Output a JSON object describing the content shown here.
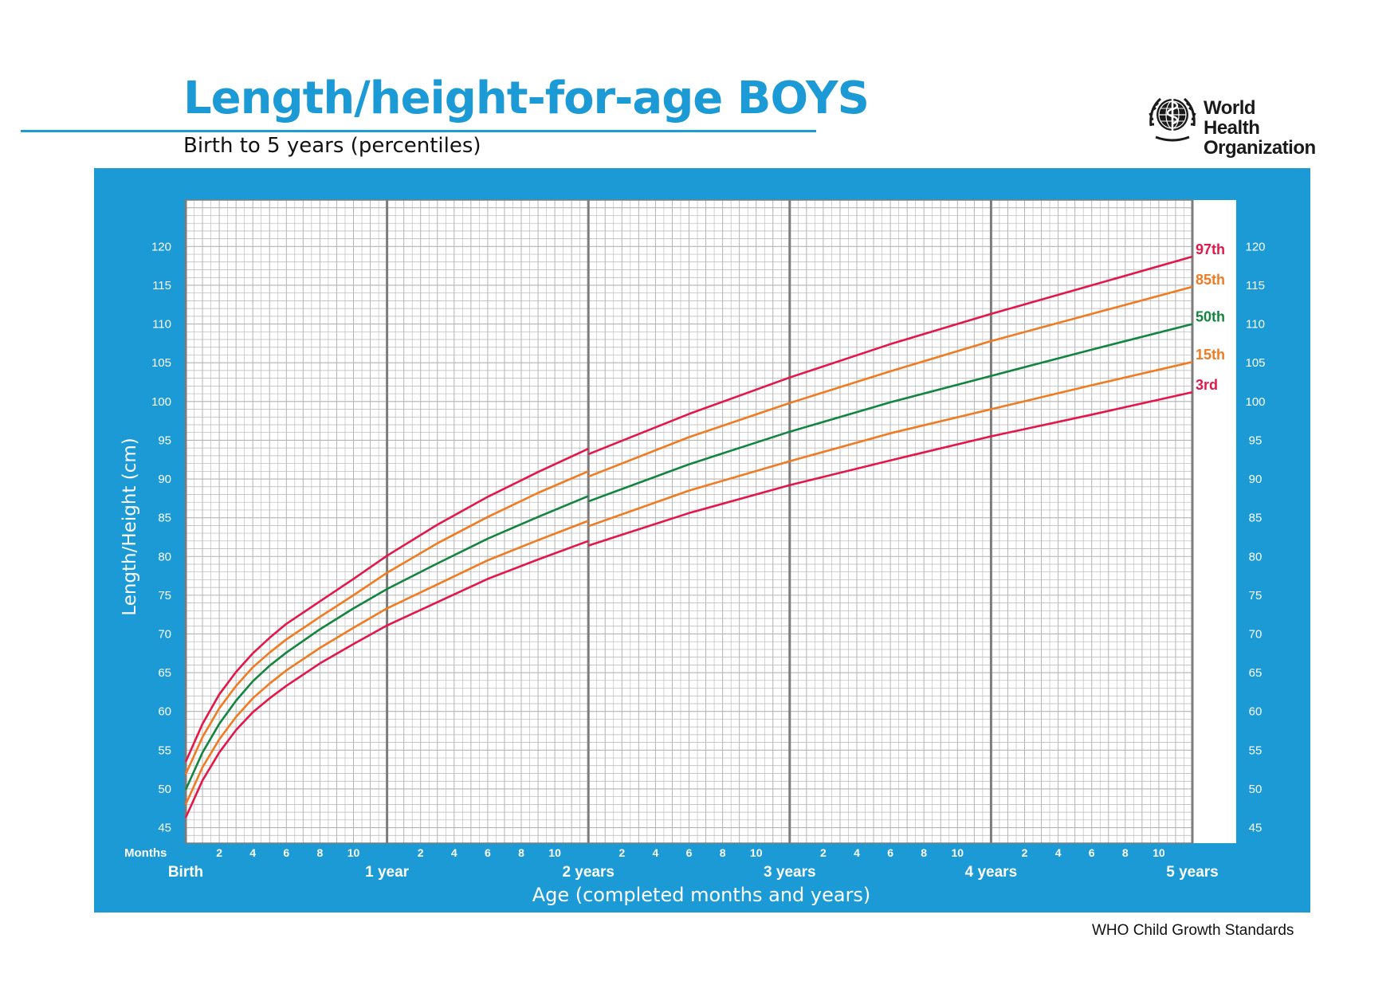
{
  "header": {
    "title": "Length/height-for-age BOYS",
    "subtitle": "Birth to 5 years (percentiles)",
    "brand_color": "#1b9ad6",
    "logo": {
      "name_line1": "World Health",
      "name_line2": "Organization",
      "icon": "who-emblem-icon"
    }
  },
  "footer": {
    "note": "WHO Child Growth Standards"
  },
  "colors": {
    "panel": "#1b9ad6",
    "grid_minor": "#b4b4b4",
    "grid_major": "#7c7c7c",
    "axis_text": "#ffffff",
    "red": "#e3174a",
    "orange": "#f07b22",
    "green": "#138540"
  },
  "chart_data": {
    "type": "line",
    "title": "Length/height-for-age BOYS",
    "subtitle": "Birth to 5 years (percentiles)",
    "xlabel": "Age (completed months and years)",
    "ylabel": "Length/Height (cm)",
    "x_unit_label": "Months",
    "xlim": [
      0,
      60
    ],
    "ylim": [
      43,
      126
    ],
    "grid": true,
    "y_ticks": [
      45,
      50,
      55,
      60,
      65,
      70,
      75,
      80,
      85,
      90,
      95,
      100,
      105,
      110,
      115,
      120
    ],
    "x_month_ticks": [
      2,
      4,
      6,
      8,
      10
    ],
    "x_year_labels": [
      {
        "month": 0,
        "label": "Birth"
      },
      {
        "month": 12,
        "label": "1 year"
      },
      {
        "month": 24,
        "label": "2 years"
      },
      {
        "month": 36,
        "label": "3 years"
      },
      {
        "month": 48,
        "label": "4 years"
      },
      {
        "month": 60,
        "label": "5 years"
      }
    ],
    "x": [
      0,
      1,
      2,
      3,
      4,
      5,
      6,
      8,
      10,
      12,
      15,
      18,
      21,
      24,
      24,
      30,
      36,
      42,
      48,
      54,
      60
    ],
    "series": [
      {
        "name": "97th",
        "color": "#e3174a",
        "values": [
          53.5,
          58.4,
          62.2,
          65.1,
          67.5,
          69.5,
          71.3,
          74.2,
          77.1,
          80.1,
          84.1,
          87.7,
          90.9,
          93.9,
          93.2,
          98.4,
          103.1,
          107.4,
          111.3,
          115.0,
          118.7
        ]
      },
      {
        "name": "85th",
        "color": "#f07b22",
        "values": [
          51.9,
          56.7,
          60.4,
          63.3,
          65.7,
          67.6,
          69.3,
          72.2,
          75.0,
          77.9,
          81.7,
          85.1,
          88.2,
          91.0,
          90.3,
          95.4,
          99.8,
          103.9,
          107.8,
          111.3,
          114.8
        ]
      },
      {
        "name": "50th",
        "color": "#138540",
        "values": [
          49.9,
          54.7,
          58.4,
          61.4,
          63.9,
          65.9,
          67.6,
          70.6,
          73.3,
          75.8,
          79.1,
          82.3,
          85.1,
          87.8,
          87.1,
          91.9,
          96.1,
          99.9,
          103.3,
          106.7,
          110.0
        ]
      },
      {
        "name": "15th",
        "color": "#f07b22",
        "values": [
          48.0,
          52.8,
          56.4,
          59.3,
          61.7,
          63.6,
          65.3,
          68.2,
          70.8,
          73.3,
          76.4,
          79.5,
          82.1,
          84.6,
          83.9,
          88.5,
          92.3,
          95.9,
          99.0,
          102.1,
          105.1
        ]
      },
      {
        "name": "3rd",
        "color": "#e3174a",
        "values": [
          46.3,
          51.1,
          54.7,
          57.6,
          59.9,
          61.7,
          63.3,
          66.2,
          68.7,
          71.1,
          74.1,
          77.1,
          79.6,
          82.0,
          81.4,
          85.6,
          89.2,
          92.4,
          95.5,
          98.3,
          101.2
        ]
      }
    ]
  }
}
